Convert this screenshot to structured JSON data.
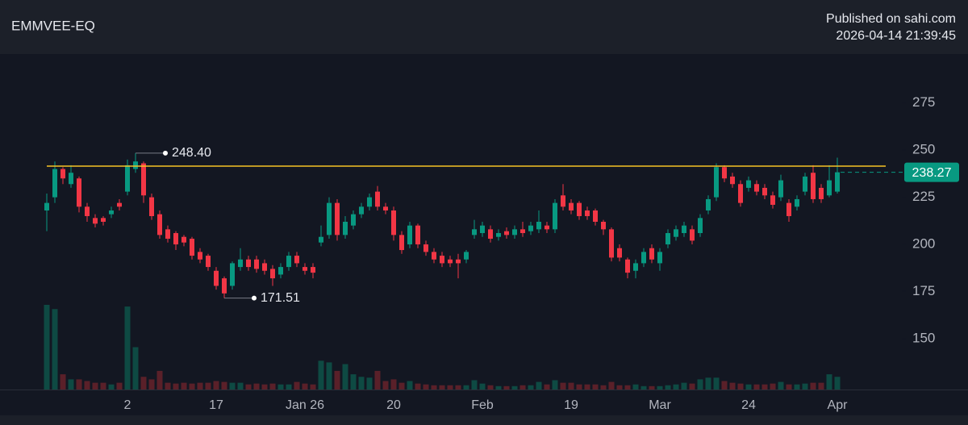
{
  "chart_data": {
    "type": "candlestick",
    "title": "EMMVEE-EQ",
    "subtitle": [
      "Published on sahi.com",
      "2026-04-14 21:39:45"
    ],
    "categories": [
      null,
      null,
      null,
      null,
      null,
      null,
      null,
      null,
      null,
      null,
      "2",
      null,
      null,
      null,
      null,
      null,
      null,
      null,
      null,
      null,
      null,
      "17",
      null,
      null,
      null,
      null,
      null,
      null,
      null,
      null,
      null,
      null,
      "Jan 26",
      null,
      null,
      null,
      null,
      null,
      null,
      null,
      null,
      null,
      null,
      "20",
      null,
      null,
      null,
      null,
      null,
      null,
      null,
      null,
      null,
      null,
      "Feb",
      null,
      null,
      null,
      null,
      null,
      null,
      null,
      null,
      null,
      null,
      "19",
      null,
      null,
      null,
      null,
      null,
      null,
      null,
      null,
      null,
      null,
      "Mar",
      null,
      null,
      null,
      null,
      null,
      null,
      null,
      null,
      null,
      null,
      "24",
      null,
      null,
      null,
      null,
      null,
      null,
      null,
      null,
      null,
      null,
      "Apr"
    ],
    "open": [
      218,
      225,
      240,
      232,
      235,
      220,
      214,
      214,
      216,
      222,
      228,
      240,
      243,
      225,
      216,
      208,
      206,
      204,
      203,
      196,
      194,
      186,
      182,
      178,
      188,
      192,
      192,
      190,
      187,
      184,
      188,
      194,
      188,
      188,
      201,
      205,
      222,
      205,
      210,
      216,
      220,
      228,
      220,
      218,
      205,
      200,
      210,
      200,
      196,
      194,
      192,
      192,
      192,
      205,
      206,
      208,
      204,
      207,
      205,
      208,
      207,
      208,
      210,
      208,
      226,
      222,
      222,
      218,
      218,
      212,
      208,
      198,
      192,
      186,
      190,
      198,
      190,
      200,
      204,
      206,
      208,
      206,
      218,
      225,
      241,
      236,
      232,
      230,
      232,
      230,
      226,
      225,
      222,
      220,
      228,
      238,
      230,
      226,
      228
    ],
    "high": [
      227,
      244,
      241,
      242,
      236,
      222,
      216,
      215,
      220,
      224,
      245,
      248.4,
      244,
      227,
      218,
      210,
      207,
      205,
      204,
      198,
      195,
      188,
      183,
      191,
      198,
      194,
      194,
      192,
      189,
      190,
      196,
      196,
      190,
      190,
      210,
      225,
      224,
      215,
      218,
      222,
      227,
      231,
      222,
      220,
      207,
      212,
      211,
      202,
      198,
      196,
      194,
      195,
      197,
      213,
      212,
      210,
      208,
      209,
      210,
      212,
      212,
      218,
      212,
      224,
      232,
      224,
      223,
      220,
      219,
      213,
      209,
      200,
      193,
      192,
      198,
      200,
      198,
      208,
      210,
      212,
      210,
      216,
      226,
      243,
      242,
      238,
      234,
      236,
      234,
      232,
      228,
      237,
      224,
      226,
      238,
      242,
      232,
      242,
      246
    ],
    "low": [
      207,
      222,
      232,
      230,
      217,
      212,
      209,
      210,
      214,
      218,
      226,
      238,
      222,
      213,
      203,
      201,
      197,
      199,
      192,
      190,
      186,
      176,
      171.51,
      176,
      186,
      186,
      185,
      184,
      178,
      182,
      186,
      188,
      184,
      182,
      199,
      203,
      202,
      203,
      208,
      214,
      218,
      218,
      216,
      202,
      195,
      198,
      198,
      194,
      190,
      188,
      188,
      182,
      190,
      203,
      204,
      201,
      202,
      203,
      203,
      204,
      205,
      206,
      206,
      206,
      218,
      216,
      213,
      213,
      210,
      205,
      191,
      191,
      182,
      182,
      188,
      190,
      186,
      198,
      202,
      204,
      200,
      204,
      216,
      223,
      233,
      230,
      220,
      228,
      226,
      224,
      219,
      223,
      212,
      218,
      226,
      222,
      222,
      225,
      227
    ],
    "close": [
      222,
      240,
      235,
      238,
      220,
      215,
      211,
      212,
      218,
      220,
      242,
      244,
      226,
      215,
      205,
      203,
      200,
      201,
      194,
      192,
      188,
      178,
      174,
      190,
      192,
      188,
      187,
      186,
      182,
      188,
      194,
      190,
      186,
      185,
      204,
      222,
      205,
      212,
      216,
      220,
      225,
      220,
      218,
      205,
      197,
      210,
      200,
      196,
      192,
      190,
      190,
      190,
      196,
      208,
      210,
      203,
      206,
      205,
      208,
      206,
      210,
      212,
      208,
      222,
      220,
      218,
      215,
      215,
      212,
      208,
      193,
      193,
      185,
      190,
      196,
      192,
      196,
      206,
      208,
      210,
      202,
      214,
      224,
      241,
      235,
      232,
      222,
      234,
      228,
      226,
      221,
      234,
      215,
      224,
      236,
      224,
      224,
      234,
      238.27
    ],
    "volume": [
      100,
      95,
      18,
      12,
      12,
      10,
      8,
      8,
      6,
      8,
      98,
      50,
      15,
      12,
      22,
      8,
      7,
      8,
      7,
      8,
      8,
      10,
      9,
      8,
      8,
      6,
      7,
      6,
      7,
      6,
      6,
      9,
      7,
      6,
      34,
      32,
      22,
      30,
      18,
      15,
      14,
      22,
      10,
      12,
      8,
      10,
      7,
      6,
      5,
      5,
      5,
      5,
      5,
      11,
      7,
      5,
      4,
      4,
      4,
      5,
      5,
      9,
      6,
      11,
      8,
      8,
      6,
      6,
      6,
      5,
      9,
      5,
      5,
      6,
      4,
      4,
      4,
      5,
      6,
      8,
      7,
      12,
      14,
      14,
      10,
      8,
      7,
      6,
      6,
      6,
      7,
      9,
      6,
      6,
      7,
      8,
      8,
      18,
      15
    ],
    "up_color": "#089981",
    "down_color": "#f23645",
    "volume_up_color": "#0e4a43",
    "volume_down_color": "#5a2029",
    "level": {
      "value": 241.5,
      "color": "#f7c325"
    },
    "annotations": [
      {
        "value": 248.4,
        "label": "248.40"
      },
      {
        "value": 171.51,
        "label": "171.51"
      }
    ],
    "ylim": [
      123,
      301
    ],
    "yticks": [
      150,
      175,
      200,
      225,
      250,
      275
    ],
    "grid": false
  }
}
